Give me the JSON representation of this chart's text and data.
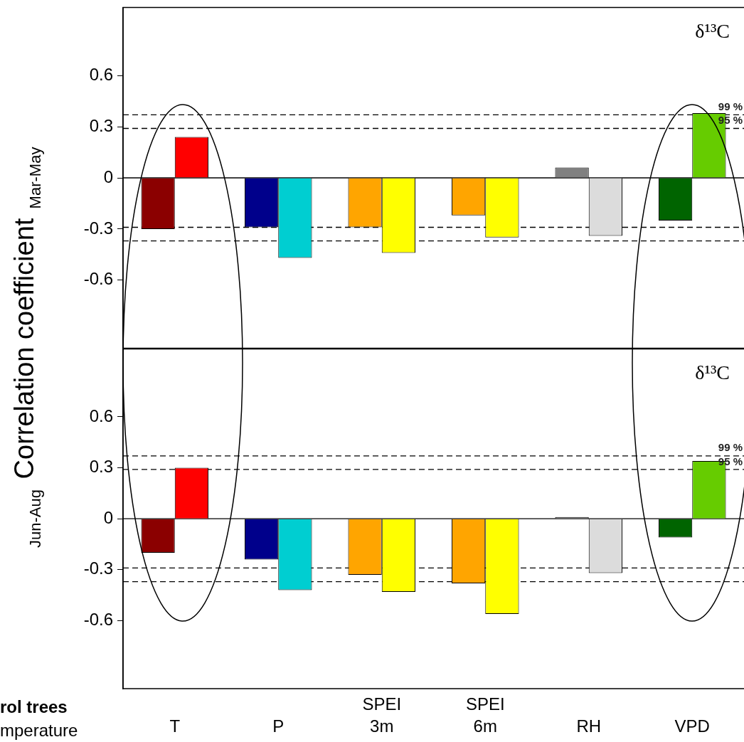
{
  "chart_data": [
    {
      "type": "bar",
      "ylabel": "Mar-May",
      "categories": [
        null,
        null,
        null,
        null,
        null,
        null
      ],
      "series": [
        {
          "colors": [
            "#8b0000",
            "#00008b",
            "#ffa500",
            "#ffa500",
            "#808080",
            "#006400"
          ],
          "values": [
            -0.3,
            -0.29,
            -0.29,
            -0.22,
            0.06,
            -0.25
          ]
        },
        {
          "colors": [
            "#ff0000",
            "#00ced1",
            "#ffff00",
            "#ffff00",
            "#dcdcdc",
            "#66cc00"
          ],
          "values": [
            0.24,
            -0.47,
            -0.44,
            -0.35,
            -0.34,
            0.38
          ]
        }
      ],
      "ylim": [
        -1,
        1
      ],
      "yticks": [
        -0.6,
        -0.3,
        0,
        0.3,
        0.6
      ],
      "grid": false,
      "legend": false,
      "tick_labels": "y",
      "ref_lines": [
        {
          "axis": "y",
          "value": 0,
          "line_style": "solid"
        },
        {
          "axis": "y",
          "value": 0.37,
          "line_style": "dashed"
        },
        {
          "axis": "y",
          "value": 0.29,
          "line_style": "dashed"
        },
        {
          "axis": "y",
          "value": -0.29,
          "line_style": "dashed"
        },
        {
          "axis": "y",
          "value": -0.37,
          "line_style": "dashed"
        }
      ],
      "annotations": [
        "δ¹³C",
        "Correlation coefficient",
        {
          "text": "99 %",
          "y": 0.37
        },
        {
          "text": "95 %",
          "y": 0.29
        }
      ]
    },
    {
      "type": "bar",
      "ylabel": "Jun-Aug",
      "categories": [
        "T",
        "P",
        "SPEI 3m",
        "SPEI 6m",
        "RH",
        "VPD"
      ],
      "series": [
        {
          "colors": [
            "#8b0000",
            "#00008b",
            "#ffa500",
            "#ffa500",
            "#808080",
            "#006400"
          ],
          "values": [
            -0.2,
            -0.24,
            -0.33,
            -0.38,
            0.01,
            -0.11
          ]
        },
        {
          "colors": [
            "#ff0000",
            "#00ced1",
            "#ffff00",
            "#ffff00",
            "#dcdcdc",
            "#66cc00"
          ],
          "values": [
            0.3,
            -0.42,
            -0.43,
            -0.56,
            -0.32,
            0.34
          ]
        }
      ],
      "ylim": [
        -1,
        1
      ],
      "yticks": [
        -0.6,
        -0.3,
        0,
        0.3,
        0.6
      ],
      "grid": false,
      "legend": false,
      "ref_lines": [
        {
          "axis": "y",
          "value": 0,
          "line_style": "solid"
        },
        {
          "axis": "y",
          "value": 0.37,
          "line_style": "dashed"
        },
        {
          "axis": "y",
          "value": 0.29,
          "line_style": "dashed"
        },
        {
          "axis": "y",
          "value": -0.29,
          "line_style": "dashed"
        },
        {
          "axis": "y",
          "value": -0.37,
          "line_style": "dashed"
        }
      ],
      "annotations": [
        "δ¹³C",
        "rol trees",
        "mperature",
        {
          "text": "99 %",
          "y": 0.37
        },
        {
          "text": "95 %",
          "y": 0.29
        }
      ]
    }
  ]
}
